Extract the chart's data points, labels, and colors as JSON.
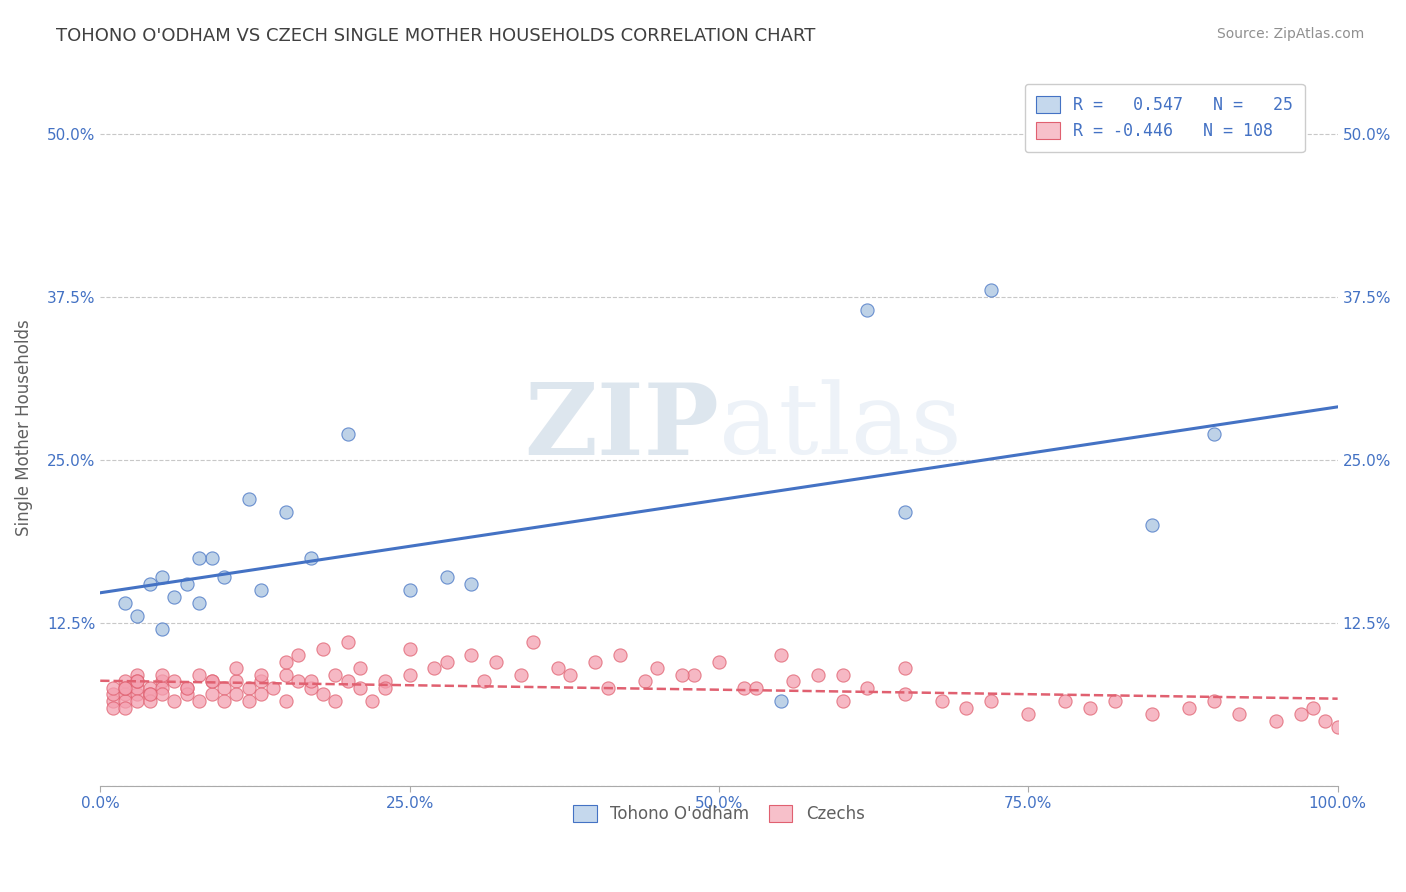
{
  "title": "TOHONO O'ODHAM VS CZECH SINGLE MOTHER HOUSEHOLDS CORRELATION CHART",
  "source": "Source: ZipAtlas.com",
  "ylabel": "Single Mother Households",
  "legend_labels": [
    "Tohono O'odham",
    "Czechs"
  ],
  "blue_R": 0.547,
  "blue_N": 25,
  "pink_R": -0.446,
  "pink_N": 108,
  "blue_color": "#a8c4e0",
  "pink_color": "#f4a0b0",
  "blue_line_color": "#4472c4",
  "pink_line_color": "#e06070",
  "blue_legend_color": "#c5d8ed",
  "pink_legend_color": "#f7c0ca",
  "xlim": [
    0.0,
    1.0
  ],
  "ylim": [
    0.0,
    0.55
  ],
  "xticks": [
    0.0,
    0.25,
    0.5,
    0.75,
    1.0
  ],
  "xtick_labels": [
    "0.0%",
    "25.0%",
    "50.0%",
    "75.0%",
    "100.0%"
  ],
  "yticks": [
    0.0,
    0.125,
    0.25,
    0.375,
    0.5
  ],
  "ytick_labels": [
    "",
    "12.5%",
    "25.0%",
    "37.5%",
    "50.0%"
  ],
  "watermark_zip": "ZIP",
  "watermark_atlas": "atlas",
  "blue_scatter_x": [
    0.02,
    0.03,
    0.04,
    0.05,
    0.06,
    0.07,
    0.08,
    0.09,
    0.1,
    0.12,
    0.13,
    0.15,
    0.17,
    0.2,
    0.25,
    0.28,
    0.3,
    0.55,
    0.62,
    0.65,
    0.72,
    0.85,
    0.9,
    0.05,
    0.08
  ],
  "blue_scatter_y": [
    0.14,
    0.13,
    0.155,
    0.16,
    0.145,
    0.155,
    0.14,
    0.175,
    0.16,
    0.22,
    0.15,
    0.21,
    0.175,
    0.27,
    0.15,
    0.16,
    0.155,
    0.065,
    0.365,
    0.21,
    0.38,
    0.2,
    0.27,
    0.12,
    0.175
  ],
  "pink_scatter_x": [
    0.01,
    0.01,
    0.01,
    0.02,
    0.02,
    0.02,
    0.02,
    0.03,
    0.03,
    0.03,
    0.03,
    0.04,
    0.04,
    0.04,
    0.05,
    0.05,
    0.05,
    0.06,
    0.06,
    0.07,
    0.07,
    0.08,
    0.08,
    0.09,
    0.09,
    0.1,
    0.1,
    0.11,
    0.11,
    0.12,
    0.12,
    0.13,
    0.13,
    0.14,
    0.15,
    0.15,
    0.16,
    0.16,
    0.17,
    0.18,
    0.18,
    0.19,
    0.2,
    0.2,
    0.21,
    0.22,
    0.23,
    0.25,
    0.27,
    0.3,
    0.32,
    0.35,
    0.38,
    0.4,
    0.42,
    0.45,
    0.48,
    0.5,
    0.52,
    0.55,
    0.58,
    0.6,
    0.62,
    0.65,
    0.68,
    0.7,
    0.72,
    0.75,
    0.78,
    0.8,
    0.82,
    0.85,
    0.88,
    0.9,
    0.92,
    0.95,
    0.97,
    0.98,
    0.99,
    1.0,
    0.02,
    0.03,
    0.05,
    0.07,
    0.09,
    0.11,
    0.13,
    0.15,
    0.17,
    0.19,
    0.21,
    0.23,
    0.25,
    0.28,
    0.31,
    0.34,
    0.37,
    0.41,
    0.44,
    0.47,
    0.53,
    0.56,
    0.6,
    0.65,
    0.01,
    0.02,
    0.03,
    0.04
  ],
  "pink_scatter_y": [
    0.065,
    0.07,
    0.075,
    0.07,
    0.065,
    0.08,
    0.075,
    0.07,
    0.075,
    0.065,
    0.085,
    0.075,
    0.07,
    0.065,
    0.08,
    0.075,
    0.07,
    0.065,
    0.08,
    0.075,
    0.07,
    0.065,
    0.085,
    0.08,
    0.07,
    0.075,
    0.065,
    0.08,
    0.07,
    0.075,
    0.065,
    0.08,
    0.07,
    0.075,
    0.085,
    0.065,
    0.08,
    0.1,
    0.075,
    0.07,
    0.105,
    0.065,
    0.08,
    0.11,
    0.075,
    0.065,
    0.08,
    0.105,
    0.09,
    0.1,
    0.095,
    0.11,
    0.085,
    0.095,
    0.1,
    0.09,
    0.085,
    0.095,
    0.075,
    0.1,
    0.085,
    0.065,
    0.075,
    0.07,
    0.065,
    0.06,
    0.065,
    0.055,
    0.065,
    0.06,
    0.065,
    0.055,
    0.06,
    0.065,
    0.055,
    0.05,
    0.055,
    0.06,
    0.05,
    0.045,
    0.075,
    0.08,
    0.085,
    0.075,
    0.08,
    0.09,
    0.085,
    0.095,
    0.08,
    0.085,
    0.09,
    0.075,
    0.085,
    0.095,
    0.08,
    0.085,
    0.09,
    0.075,
    0.08,
    0.085,
    0.075,
    0.08,
    0.085,
    0.09,
    0.06,
    0.06,
    0.08,
    0.07
  ],
  "background_color": "#ffffff",
  "grid_color": "#c8c8c8",
  "title_color": "#404040",
  "axis_label_color": "#606060",
  "tick_label_color": "#4472c4",
  "source_color": "#909090"
}
